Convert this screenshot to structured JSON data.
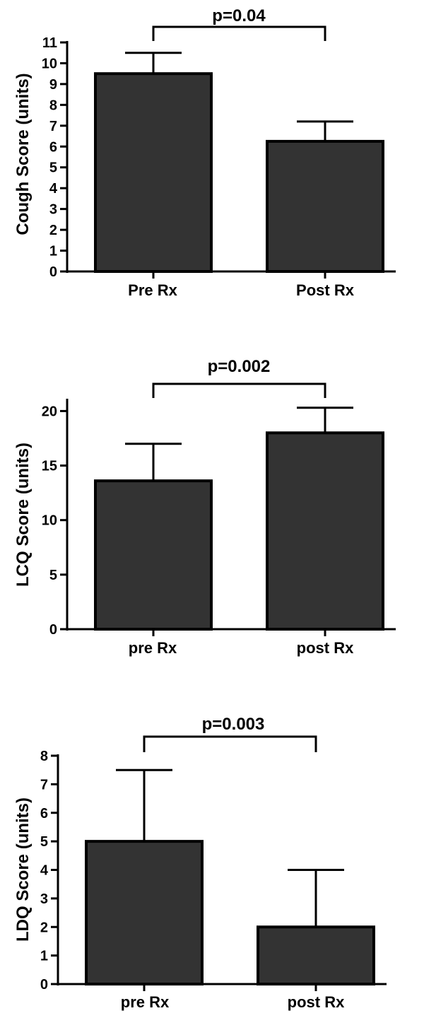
{
  "colors": {
    "bar_fill": "#333333",
    "stroke": "#000000",
    "background": "#ffffff"
  },
  "chart_data": [
    {
      "type": "bar",
      "categories": [
        "Pre Rx",
        "Post Rx"
      ],
      "values": [
        9.5,
        6.25
      ],
      "error_upper": [
        10.5,
        7.2
      ],
      "ylabel": "Cough Score (units)",
      "ylim": [
        0,
        11
      ],
      "yticks": [
        0,
        1,
        2,
        3,
        4,
        5,
        6,
        7,
        8,
        9,
        10,
        11
      ],
      "significance": {
        "label": "p=0.04",
        "between": [
          0,
          1
        ]
      },
      "grid": false,
      "legend": "none"
    },
    {
      "type": "bar",
      "categories": [
        "pre Rx",
        "post Rx"
      ],
      "values": [
        13.6,
        18.0
      ],
      "error_upper": [
        17.0,
        20.3
      ],
      "ylabel": "LCQ Score (units)",
      "ylim": [
        0,
        21
      ],
      "yticks": [
        0,
        5,
        10,
        15,
        20
      ],
      "significance": {
        "label": "p=0.002",
        "between": [
          0,
          1
        ]
      },
      "grid": false,
      "legend": "none"
    },
    {
      "type": "bar",
      "categories": [
        "pre Rx",
        "post Rx"
      ],
      "values": [
        5.0,
        2.0
      ],
      "error_upper": [
        7.5,
        4.0
      ],
      "ylabel": "LDQ Score (units)",
      "ylim": [
        0,
        8
      ],
      "yticks": [
        0,
        1,
        2,
        3,
        4,
        5,
        6,
        7,
        8
      ],
      "significance": {
        "label": "p=0.003",
        "between": [
          0,
          1
        ]
      },
      "grid": false,
      "legend": "none"
    }
  ]
}
